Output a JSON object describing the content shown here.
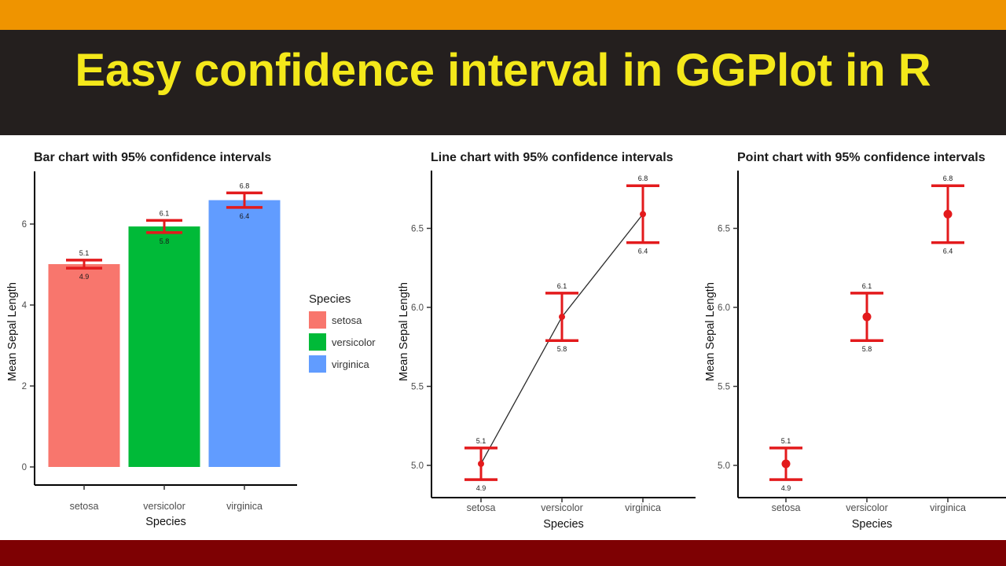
{
  "banner": {
    "title": "Easy confidence interval in GGPlot in R"
  },
  "colors": {
    "top_bar": "#EF9400",
    "banner_bg": "#241F1E",
    "banner_title": "#F4E81A",
    "bottom_bar": "#7E0103",
    "chart_background": "#FFFFFF",
    "error_bars": "#E31A1C"
  },
  "legend": {
    "title": "Species",
    "items": [
      {
        "label": "setosa",
        "color": "#F8766D"
      },
      {
        "label": "versicolor",
        "color": "#00BA38"
      },
      {
        "label": "virginica",
        "color": "#619CFF"
      }
    ]
  },
  "chart_data": [
    {
      "type": "bar",
      "title": "Bar chart with 95% confidence intervals",
      "xlabel": "Species",
      "ylabel": "Mean Sepal Length",
      "categories": [
        "setosa",
        "versicolor",
        "virginica"
      ],
      "values": [
        5.01,
        5.94,
        6.59
      ],
      "ci_lower": [
        4.91,
        5.79,
        6.41
      ],
      "ci_upper": [
        5.11,
        6.09,
        6.77
      ],
      "ci_upper_labels": [
        "5.1",
        "6.1",
        "6.8"
      ],
      "ci_lower_labels": [
        "4.9",
        "5.8",
        "6.4"
      ],
      "bar_colors": [
        "#F8766D",
        "#00BA38",
        "#619CFF"
      ],
      "error_color": "#E31A1C",
      "yticks": [
        0,
        2,
        4,
        6
      ],
      "ytick_labels": [
        "0",
        "2",
        "4",
        "6"
      ],
      "ylim": [
        -0.45,
        7.3
      ],
      "grid": false,
      "legend_position": "right"
    },
    {
      "type": "line",
      "title": "Line chart with 95% confidence intervals",
      "xlabel": "Species",
      "ylabel": "Mean Sepal Length",
      "categories": [
        "setosa",
        "versicolor",
        "virginica"
      ],
      "values": [
        5.01,
        5.94,
        6.59
      ],
      "ci_lower": [
        4.91,
        5.79,
        6.41
      ],
      "ci_upper": [
        5.11,
        6.09,
        6.77
      ],
      "ci_upper_labels": [
        "5.1",
        "6.1",
        "6.8"
      ],
      "ci_lower_labels": [
        "4.9",
        "5.8",
        "6.4"
      ],
      "line_color": "#2B2B2B",
      "point_color": "#E31A1C",
      "error_color": "#E31A1C",
      "yticks": [
        5.0,
        5.5,
        6.0,
        6.5
      ],
      "ytick_labels": [
        "5.0",
        "5.5",
        "6.0",
        "6.5"
      ],
      "ylim": [
        4.8,
        6.87
      ],
      "grid": false,
      "legend_position": "none"
    },
    {
      "type": "point",
      "title": "Point chart with 95% confidence intervals",
      "xlabel": "Species",
      "ylabel": "Mean Sepal Length",
      "categories": [
        "setosa",
        "versicolor",
        "virginica"
      ],
      "values": [
        5.01,
        5.94,
        6.59
      ],
      "ci_lower": [
        4.91,
        5.79,
        6.41
      ],
      "ci_upper": [
        5.11,
        6.09,
        6.77
      ],
      "ci_upper_labels": [
        "5.1",
        "6.1",
        "6.8"
      ],
      "ci_lower_labels": [
        "4.9",
        "5.8",
        "6.4"
      ],
      "point_color": "#E31A1C",
      "error_color": "#E31A1C",
      "yticks": [
        5.0,
        5.5,
        6.0,
        6.5
      ],
      "ytick_labels": [
        "5.0",
        "5.5",
        "6.0",
        "6.5"
      ],
      "ylim": [
        4.8,
        6.87
      ],
      "grid": false,
      "legend_position": "none"
    }
  ]
}
